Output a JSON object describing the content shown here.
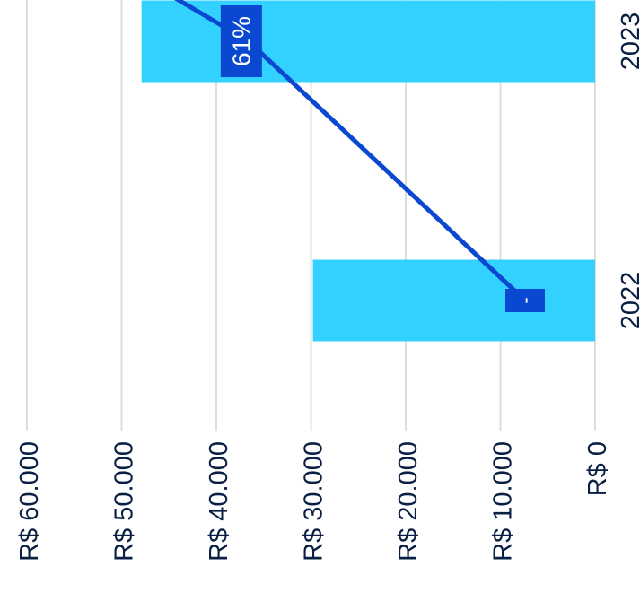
{
  "chart_data": {
    "type": "bar",
    "orientation": "rotated-90-clockwise",
    "categories": [
      "2022",
      "2023"
    ],
    "values": [
      29800,
      47900
    ],
    "value_axis": {
      "min": 0,
      "max": 60000,
      "ticks": [
        0,
        10000,
        20000,
        30000,
        40000,
        50000,
        60000
      ],
      "tick_labels": [
        "R$ 0",
        "R$ 10.000",
        "R$ 20.000",
        "R$ 30.000",
        "R$ 40.000",
        "R$ 50.000",
        "R$ 60.000"
      ]
    },
    "grid": true,
    "line_series": {
      "values": [
        null,
        61
      ],
      "data_labels": [
        "-",
        "61%"
      ],
      "max": 100
    },
    "colors": {
      "bar": "#33d1ff",
      "line": "#0b48d1",
      "label_bg": "#0b48d1",
      "label_text": "#ffffff",
      "grid": "#dddddd",
      "axis_text": "#0a1f44"
    }
  }
}
